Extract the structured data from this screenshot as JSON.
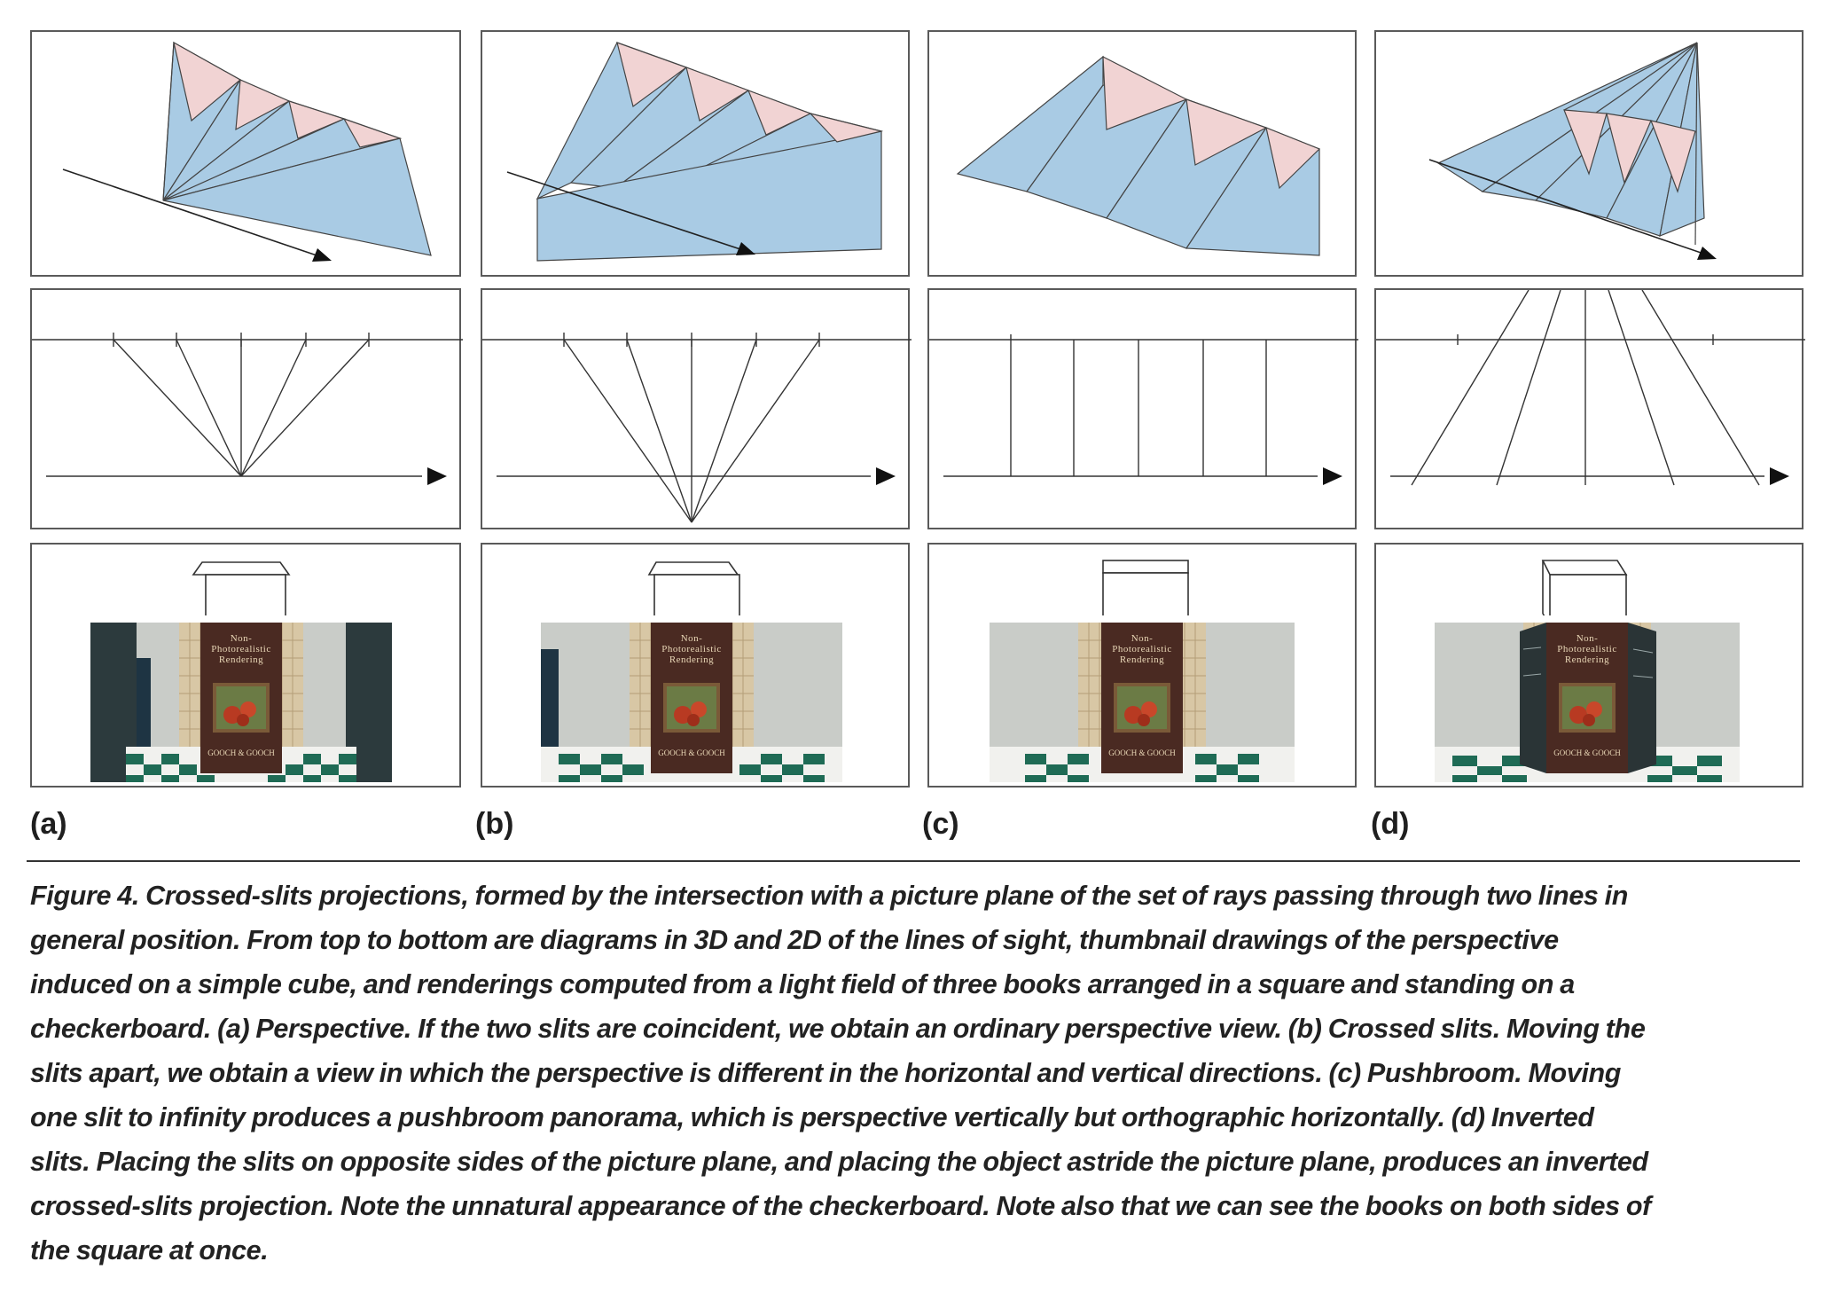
{
  "figure": {
    "subfigures": [
      {
        "label": "(a)",
        "name": "Perspective"
      },
      {
        "label": "(b)",
        "name": "Crossed slits"
      },
      {
        "label": "(c)",
        "name": "Pushbroom"
      },
      {
        "label": "(d)",
        "name": "Inverted slits"
      }
    ],
    "book_title_line1": "Non-Photorealistic",
    "book_title_line2": "Rendering",
    "book_author": "GOOCH & GOOCH",
    "caption_lines": [
      "Figure 4. Crossed-slits projections, formed by the intersection with a picture plane of the set of rays passing through two lines in",
      "general position. From top to bottom are diagrams in 3D and 2D of the lines of sight, thumbnail drawings of the perspective",
      "induced on a simple cube, and renderings computed from a light field of three books arranged in a square and standing on a",
      "checkerboard. (a) Perspective. If the two slits are coincident, we obtain an ordinary perspective view. (b) Crossed slits. Moving the",
      "slits apart, we obtain a view in which the perspective is different in the horizontal and vertical directions. (c) Pushbroom. Moving",
      "one slit to infinity produces a pushbroom panorama, which is perspective vertically but orthographic horizontally. (d) Inverted",
      "slits. Placing the slits on opposite sides of the picture plane, and placing the object astride the picture plane, produces an inverted",
      "crossed-slits projection. Note the unnatural appearance of the checkerboard. Note also that we can see the books on both sides of",
      "the square at once."
    ],
    "colors": {
      "ray_fan_blue": "#a9cbe4",
      "ray_fan_pink": "#f1d3d3",
      "line_gray": "#333333",
      "book_cover": "#4a2a22",
      "checker_green": "#1f6b55"
    }
  }
}
